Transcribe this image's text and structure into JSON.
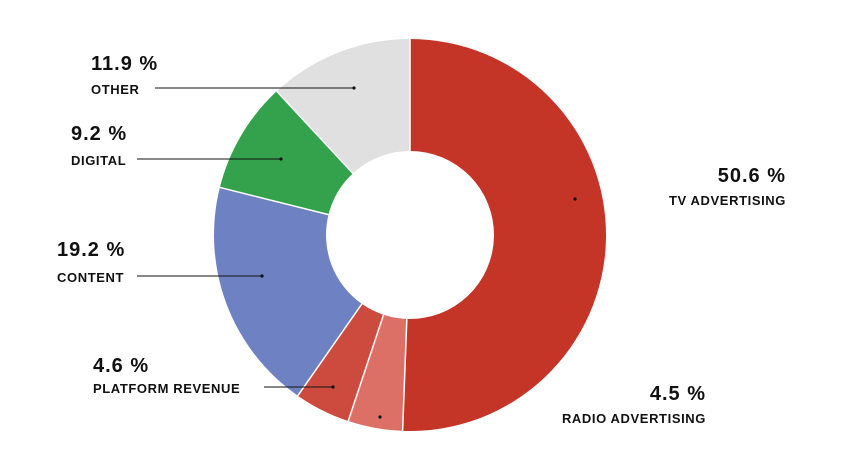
{
  "chart_data": {
    "type": "pie",
    "donut": true,
    "legend": "none",
    "slices": [
      {
        "label": "TV ADVERTISING",
        "value": 50.6,
        "display": "50.6 %",
        "color": "#c43427"
      },
      {
        "label": "RADIO ADVERTISING",
        "value": 4.5,
        "display": "4.5 %",
        "color": "#dc7066"
      },
      {
        "label": "PLATFORM REVENUE",
        "value": 4.6,
        "display": "4.6 %",
        "color": "#cd4b3e"
      },
      {
        "label": "CONTENT",
        "value": 19.2,
        "display": "19.2 %",
        "color": "#6e82c3"
      },
      {
        "label": "DIGITAL",
        "value": 9.2,
        "display": "9.2 %",
        "color": "#34a24c"
      },
      {
        "label": "OTHER",
        "value": 11.9,
        "display": "11.9 %",
        "color": "#e0e0e0"
      }
    ]
  }
}
